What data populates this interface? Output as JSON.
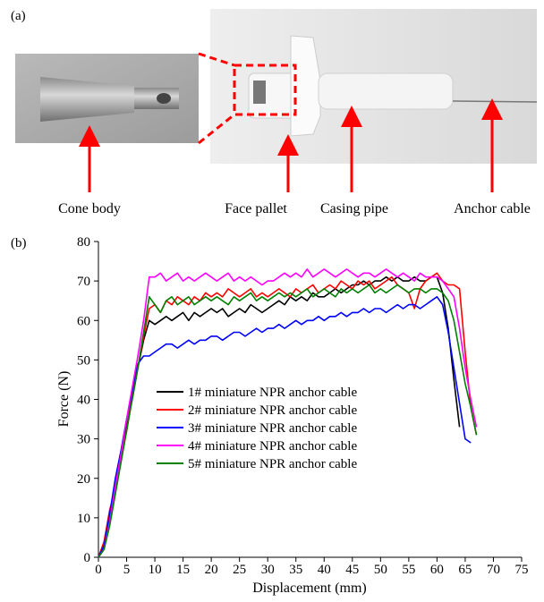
{
  "figure": {
    "panel_a": "(a)",
    "panel_b": "(b)",
    "labels": [
      "Cone body",
      "Face pallet",
      "Casing pipe",
      "Anchor cable"
    ]
  },
  "chart_data": {
    "type": "line",
    "xlabel": "Displacement (mm)",
    "ylabel": "Force (N)",
    "xlim": [
      0,
      75
    ],
    "ylim": [
      0,
      80
    ],
    "xticks": [
      0,
      5,
      10,
      15,
      20,
      25,
      30,
      35,
      40,
      45,
      50,
      55,
      60,
      65,
      70,
      75
    ],
    "yticks": [
      0,
      10,
      20,
      30,
      40,
      50,
      60,
      70,
      80
    ],
    "x": [
      0,
      1,
      2,
      3,
      4,
      5,
      6,
      7,
      8,
      9,
      10,
      11,
      12,
      13,
      14,
      15,
      16,
      17,
      18,
      19,
      20,
      21,
      22,
      23,
      24,
      25,
      26,
      27,
      28,
      29,
      30,
      31,
      32,
      33,
      34,
      35,
      36,
      37,
      38,
      39,
      40,
      41,
      42,
      43,
      44,
      45,
      46,
      47,
      48,
      49,
      50,
      51,
      52,
      53,
      54,
      55,
      56,
      57,
      58,
      59,
      60,
      61,
      62,
      63,
      64,
      65,
      66,
      67
    ],
    "series": [
      {
        "name": "1# miniature NPR anchor cable",
        "color": "#000000",
        "values": [
          0,
          3,
          10,
          18,
          25,
          33,
          40,
          48,
          55,
          60,
          59,
          60,
          61,
          60,
          61,
          62,
          60,
          62,
          61,
          62,
          63,
          62,
          63,
          61,
          62,
          63,
          62,
          64,
          63,
          62,
          63,
          64,
          65,
          64,
          66,
          65,
          66,
          65,
          67,
          66,
          66,
          67,
          68,
          67,
          68,
          69,
          69,
          70,
          69,
          70,
          70,
          71,
          70,
          71,
          70,
          70,
          71,
          70,
          70,
          71,
          71,
          67,
          58,
          45,
          33,
          null,
          null,
          null
        ]
      },
      {
        "name": "2# miniature NPR anchor cable",
        "color": "#ff0000",
        "values": [
          0,
          4,
          12,
          17,
          26,
          32,
          41,
          48,
          56,
          63,
          64,
          62,
          65,
          64,
          66,
          65,
          64,
          66,
          65,
          67,
          66,
          67,
          66,
          68,
          67,
          66,
          67,
          68,
          66,
          67,
          66,
          67,
          68,
          67,
          66,
          68,
          67,
          68,
          69,
          67,
          68,
          69,
          68,
          70,
          69,
          68,
          70,
          69,
          70,
          68,
          69,
          70,
          71,
          69,
          68,
          67,
          63,
          68,
          70,
          71,
          72,
          70,
          69,
          69,
          68,
          52,
          38,
          31
        ]
      },
      {
        "name": "3# miniature NPR anchor cable",
        "color": "#0000ff",
        "values": [
          0,
          3,
          11,
          20,
          27,
          35,
          42,
          49,
          51,
          51,
          52,
          53,
          54,
          54,
          53,
          54,
          55,
          54,
          55,
          55,
          56,
          56,
          55,
          56,
          57,
          57,
          56,
          57,
          58,
          57,
          58,
          58,
          59,
          58,
          59,
          60,
          59,
          60,
          60,
          61,
          60,
          61,
          61,
          62,
          61,
          62,
          62,
          63,
          62,
          63,
          63,
          62,
          63,
          64,
          63,
          64,
          64,
          63,
          64,
          65,
          66,
          64,
          57,
          48,
          39,
          30,
          29,
          null
        ]
      },
      {
        "name": "4# miniature NPR anchor cable",
        "color": "#ff00ff",
        "values": [
          0,
          2,
          9,
          18,
          26,
          35,
          43,
          51,
          60,
          71,
          71,
          72,
          70,
          71,
          72,
          70,
          71,
          70,
          71,
          72,
          71,
          70,
          71,
          72,
          70,
          71,
          70,
          71,
          70,
          69,
          70,
          70,
          71,
          72,
          71,
          72,
          71,
          73,
          71,
          72,
          73,
          72,
          71,
          72,
          73,
          72,
          71,
          72,
          72,
          71,
          72,
          73,
          72,
          71,
          72,
          71,
          70,
          72,
          71,
          71,
          71,
          70,
          68,
          66,
          58,
          48,
          40,
          33
        ]
      },
      {
        "name": "5# miniature NPR anchor cable",
        "color": "#008000",
        "values": [
          0,
          2,
          8,
          16,
          24,
          32,
          40,
          48,
          57,
          66,
          64,
          62,
          65,
          66,
          64,
          65,
          66,
          64,
          65,
          66,
          65,
          66,
          65,
          64,
          66,
          65,
          66,
          67,
          65,
          66,
          65,
          66,
          67,
          66,
          67,
          66,
          67,
          68,
          66,
          67,
          68,
          67,
          66,
          68,
          67,
          68,
          67,
          68,
          69,
          67,
          68,
          67,
          68,
          69,
          68,
          67,
          68,
          68,
          67,
          68,
          68,
          67,
          65,
          60,
          52,
          44,
          38,
          31
        ]
      }
    ]
  }
}
